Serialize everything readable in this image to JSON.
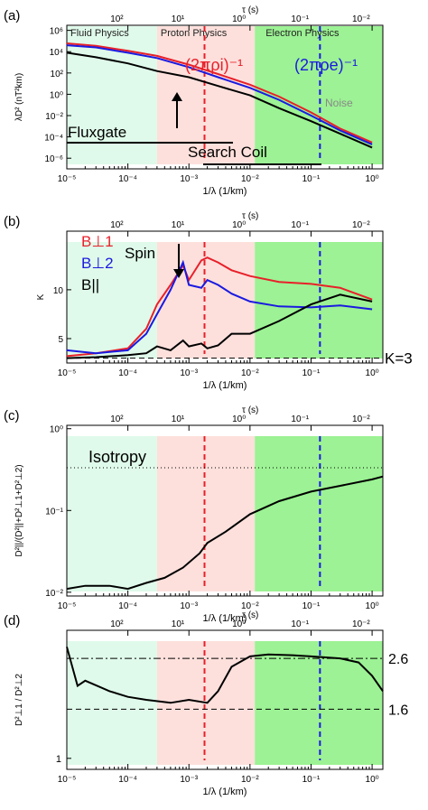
{
  "figure": {
    "panels_note": ""
  },
  "chart_data": [
    {
      "id": "a",
      "type": "line",
      "panel_label": "(a)",
      "xscale": "log",
      "yscale": "log",
      "xlim": [
        1e-05,
        1.5
      ],
      "ylim": [
        1e-07,
        3000000.0
      ],
      "xlabel": "1/λ (1/km)",
      "ylabel": "λD² (nT²km)",
      "top_axis_label": "τ (s)",
      "top_ticks": [
        {
          "label": "10²",
          "x": 6.6e-05
        },
        {
          "label": "10¹",
          "x": 0.00066
        },
        {
          "label": "10⁰",
          "x": 0.0066
        },
        {
          "label": "10⁻¹",
          "x": 0.066
        },
        {
          "label": "10⁻²",
          "x": 0.66
        }
      ],
      "xticks": [
        "10⁻⁵",
        "10⁻⁴",
        "10⁻³",
        "10⁻²",
        "10⁻¹",
        "10⁰"
      ],
      "yticks": [
        "10⁶",
        "10⁴",
        "10²",
        "10⁰",
        "10⁻²",
        "10⁻⁴",
        "10⁻⁶"
      ],
      "regions": [
        {
          "name": "Fluid Physics",
          "x0": 1e-05,
          "x1": 0.0003,
          "color": "#dffaea"
        },
        {
          "name": "Proton Physics",
          "x0": 0.0003,
          "x1": 0.012,
          "color": "#fde0dc"
        },
        {
          "name": "Electron Physics",
          "x0": 0.012,
          "x1": 1.5,
          "color": "#9cf294"
        }
      ],
      "vlines": [
        {
          "x": 0.0018,
          "color": "#e8202a",
          "style": "dashed"
        },
        {
          "x": 0.14,
          "color": "#1a1ae0",
          "style": "dashed"
        }
      ],
      "annotations": [
        {
          "text": "(2πρi)⁻¹",
          "color": "#e8202a"
        },
        {
          "text": "(2πρe)⁻¹",
          "color": "#1a1ae0"
        },
        {
          "text": "Noise",
          "color": "#888888"
        },
        {
          "text": "Fluxgate",
          "color": "#000000"
        },
        {
          "text": "Search Coil",
          "color": "#000000"
        }
      ],
      "series": [
        {
          "color": "#e8202a",
          "x": [
            1e-05,
            3e-05,
            0.0001,
            0.0003,
            0.001,
            0.003,
            0.01,
            0.03,
            0.1,
            0.3,
            1.0
          ],
          "y": [
            60000,
            35000,
            12000,
            4000,
            600,
            80,
            8,
            0.6,
            0.02,
            0.0006,
            3e-05
          ]
        },
        {
          "color": "#1a1ae0",
          "x": [
            1e-05,
            3e-05,
            0.0001,
            0.0003,
            0.001,
            0.003,
            0.01,
            0.03,
            0.1,
            0.3,
            1.0
          ],
          "y": [
            40000,
            25000,
            8000,
            2500,
            350,
            40,
            4,
            0.3,
            0.01,
            0.0004,
            2e-05
          ]
        },
        {
          "color": "#000000",
          "x": [
            1e-05,
            3e-05,
            0.0001,
            0.0003,
            0.001,
            0.003,
            0.01,
            0.03,
            0.1,
            0.3,
            1.0
          ],
          "y": [
            8000,
            3000,
            800,
            150,
            40,
            6,
            0.8,
            0.05,
            0.003,
            0.0002,
            1e-05
          ]
        }
      ]
    },
    {
      "id": "b",
      "type": "line",
      "panel_label": "(b)",
      "xscale": "log",
      "yscale": "linear",
      "xlim": [
        1e-05,
        1.5
      ],
      "ylim": [
        2.5,
        16
      ],
      "xlabel": "1/λ (1/km)",
      "ylabel": "K",
      "top_axis_label": "τ (s)",
      "xticks": [
        "10⁻⁵",
        "10⁻⁴",
        "10⁻³",
        "10⁻²",
        "10⁻¹",
        "10⁰"
      ],
      "yticks": [
        "5",
        "10"
      ],
      "hline": {
        "y": 3,
        "label": "K=3"
      },
      "legend": [
        "B⊥1",
        "B⊥2",
        "B||"
      ],
      "annotations": [
        {
          "text": "Spin"
        }
      ],
      "series": [
        {
          "name": "B⊥1",
          "color": "#e8202a",
          "x": [
            1e-05,
            3e-05,
            0.0001,
            0.0002,
            0.0003,
            0.0005,
            0.0008,
            0.001,
            0.0016,
            0.002,
            0.003,
            0.005,
            0.01,
            0.03,
            0.1,
            0.3,
            1.0
          ],
          "y": [
            3.2,
            3.5,
            4.0,
            6.0,
            8.5,
            10.5,
            12.5,
            11.0,
            13.0,
            13.3,
            12.8,
            12.0,
            11.4,
            10.8,
            10.6,
            10.2,
            9.0
          ]
        },
        {
          "name": "B⊥2",
          "color": "#1a1ae0",
          "x": [
            1e-05,
            3e-05,
            0.0001,
            0.0002,
            0.0003,
            0.0005,
            0.0008,
            0.001,
            0.0016,
            0.002,
            0.003,
            0.005,
            0.01,
            0.03,
            0.1,
            0.3,
            1.0
          ],
          "y": [
            3.8,
            3.5,
            3.8,
            5.5,
            7.5,
            10.0,
            12.8,
            10.5,
            10.2,
            11.0,
            10.5,
            9.6,
            8.8,
            8.3,
            8.2,
            8.4,
            8.0
          ]
        },
        {
          "name": "B||",
          "color": "#000000",
          "x": [
            1e-05,
            3e-05,
            0.0001,
            0.0002,
            0.0003,
            0.0005,
            0.0008,
            0.001,
            0.0016,
            0.002,
            0.003,
            0.005,
            0.01,
            0.03,
            0.1,
            0.3,
            1.0
          ],
          "y": [
            3.0,
            3.1,
            3.3,
            3.5,
            4.2,
            3.8,
            4.8,
            4.2,
            4.5,
            4.0,
            4.3,
            5.5,
            5.5,
            6.8,
            8.5,
            9.5,
            8.8
          ]
        }
      ]
    },
    {
      "id": "c",
      "type": "line",
      "panel_label": "(c)",
      "xscale": "log",
      "yscale": "log",
      "xlim": [
        1e-05,
        1.5
      ],
      "ylim": [
        0.009,
        1.1
      ],
      "xlabel": "1/λ (1/km)",
      "ylabel": "D²||/(D²||+D²⊥1+D²⊥2)",
      "top_axis_label": "τ (s)",
      "xticks": [
        "10⁻⁵",
        "10⁻⁴",
        "10⁻³",
        "10⁻²",
        "10⁻¹",
        "10⁰"
      ],
      "yticks": [
        "10⁰",
        "10⁻¹",
        "10⁻²"
      ],
      "hline": {
        "y": 0.333,
        "label": "Isotropy"
      },
      "series": [
        {
          "color": "#000000",
          "x": [
            1e-05,
            2e-05,
            5e-05,
            0.0001,
            0.0002,
            0.0004,
            0.0008,
            0.0015,
            0.002,
            0.004,
            0.01,
            0.03,
            0.1,
            0.3,
            1.0,
            1.5
          ],
          "y": [
            0.011,
            0.012,
            0.012,
            0.011,
            0.013,
            0.015,
            0.02,
            0.03,
            0.04,
            0.055,
            0.09,
            0.13,
            0.17,
            0.2,
            0.24,
            0.26
          ]
        }
      ]
    },
    {
      "id": "d",
      "type": "line",
      "panel_label": "(d)",
      "xscale": "log",
      "yscale": "log",
      "xlim": [
        1e-05,
        1.5
      ],
      "ylim": [
        0.9,
        3.4
      ],
      "xlabel": "1/λ (1/km)",
      "ylabel": "D²⊥1 / D²⊥2",
      "top_axis_label": "τ (s)",
      "xticks": [
        "10⁻⁵",
        "10⁻⁴",
        "10⁻³",
        "10⁻²",
        "10⁻¹",
        "10⁰"
      ],
      "yticks": [
        "1"
      ],
      "hlines": [
        {
          "y": 2.6,
          "label": "2.6",
          "style": "dashdot"
        },
        {
          "y": 1.6,
          "label": "1.6",
          "style": "dashed"
        }
      ],
      "series": [
        {
          "color": "#000000",
          "x": [
            1e-05,
            1.5e-05,
            2e-05,
            5e-05,
            0.0001,
            0.0002,
            0.0005,
            0.001,
            0.002,
            0.003,
            0.005,
            0.01,
            0.02,
            0.05,
            0.1,
            0.3,
            0.6,
            1.0,
            1.5
          ],
          "y": [
            2.9,
            2.0,
            2.1,
            1.9,
            1.8,
            1.75,
            1.7,
            1.75,
            1.7,
            1.9,
            2.4,
            2.65,
            2.7,
            2.68,
            2.65,
            2.6,
            2.5,
            2.2,
            1.9
          ]
        }
      ]
    }
  ]
}
